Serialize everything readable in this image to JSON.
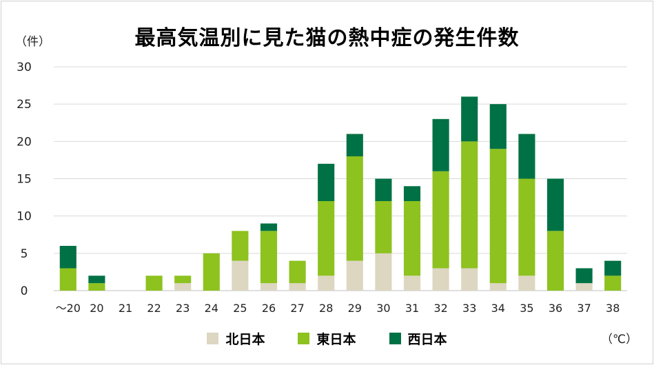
{
  "chart_data": {
    "type": "bar",
    "stacked": true,
    "title": "最高気温別に見た猫の熱中症の発生件数",
    "ylabel": "（件）",
    "xlabel": "（℃）",
    "ylim": [
      0,
      30
    ],
    "yticks": [
      0,
      5,
      10,
      15,
      20,
      25,
      30
    ],
    "grid": true,
    "legend_position": "bottom",
    "categories": [
      "～20",
      "20",
      "21",
      "22",
      "23",
      "24",
      "25",
      "26",
      "27",
      "28",
      "29",
      "30",
      "31",
      "32",
      "33",
      "34",
      "35",
      "36",
      "37",
      "38"
    ],
    "series": [
      {
        "name": "北日本",
        "color": "#ddd6c1",
        "values": [
          0,
          0,
          0,
          0,
          1,
          0,
          4,
          1,
          1,
          2,
          4,
          5,
          2,
          3,
          3,
          1,
          2,
          0,
          1,
          0
        ]
      },
      {
        "name": "東日本",
        "color": "#8dc21f",
        "values": [
          3,
          1,
          0,
          2,
          1,
          5,
          4,
          7,
          3,
          10,
          14,
          7,
          10,
          13,
          17,
          18,
          13,
          8,
          0,
          2
        ]
      },
      {
        "name": "西日本",
        "color": "#007145",
        "values": [
          3,
          1,
          0,
          0,
          0,
          0,
          0,
          1,
          0,
          5,
          3,
          3,
          2,
          7,
          6,
          6,
          6,
          7,
          2,
          2
        ]
      }
    ]
  }
}
